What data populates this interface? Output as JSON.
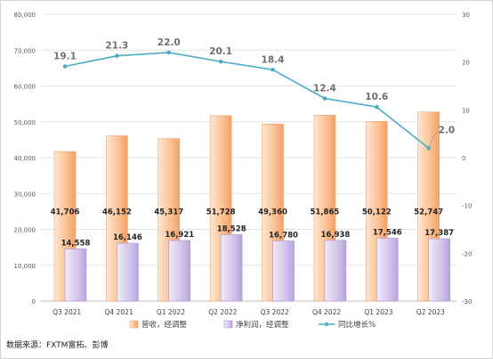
{
  "chart_data": {
    "type": "bar",
    "categories": [
      "Q3 2021",
      "Q4 2021",
      "Q1 2022",
      "Q2 2022",
      "Q3 2022",
      "Q4 2022",
      "Q1 2023",
      "Q2 2023"
    ],
    "series": [
      {
        "name": "营收，经调整",
        "type": "bar",
        "axis": "left",
        "values": [
          41706,
          46152,
          45317,
          51728,
          49360,
          51865,
          50122,
          52747
        ],
        "labels": [
          "41,706",
          "46,152",
          "45,317",
          "51,728",
          "49,360",
          "51,865",
          "50,122",
          "52,747"
        ],
        "color": "#f6b078"
      },
      {
        "name": "净利润，经调整",
        "type": "bar",
        "axis": "left",
        "values": [
          14558,
          16146,
          16921,
          18528,
          16780,
          16938,
          17546,
          17387
        ],
        "labels": [
          "14,558",
          "16,146",
          "16,921",
          "18,528",
          "16,780",
          "16,938",
          "17,546",
          "17,387"
        ],
        "color": "#c9b6e4"
      },
      {
        "name": "同比增长%",
        "type": "line",
        "axis": "right",
        "values": [
          19.1,
          21.3,
          22.0,
          20.1,
          18.4,
          12.4,
          10.6,
          2.0
        ],
        "labels": [
          "19.1",
          "21.3",
          "22.0",
          "20.1",
          "18.4",
          "12.4",
          "10.6",
          "2.0"
        ],
        "color": "#4bacc6"
      }
    ],
    "left_axis": {
      "ylim": [
        0,
        80000
      ],
      "ticks": [
        0,
        10000,
        20000,
        30000,
        40000,
        50000,
        60000,
        70000,
        80000
      ],
      "tick_labels": [
        "0",
        "10,000",
        "20,000",
        "30,000",
        "40,000",
        "50,000",
        "60,000",
        "70,000",
        "80,000"
      ]
    },
    "right_axis": {
      "ylim": [
        -30,
        30
      ],
      "ticks": [
        -30,
        -20,
        -10,
        0,
        10,
        20,
        30
      ],
      "tick_labels": [
        "-30",
        "-20",
        "-10",
        "0",
        "10",
        "20",
        "30"
      ]
    },
    "grid": true,
    "legend_position": "bottom",
    "source": "数据来源：FXTM富拓、彭博"
  }
}
